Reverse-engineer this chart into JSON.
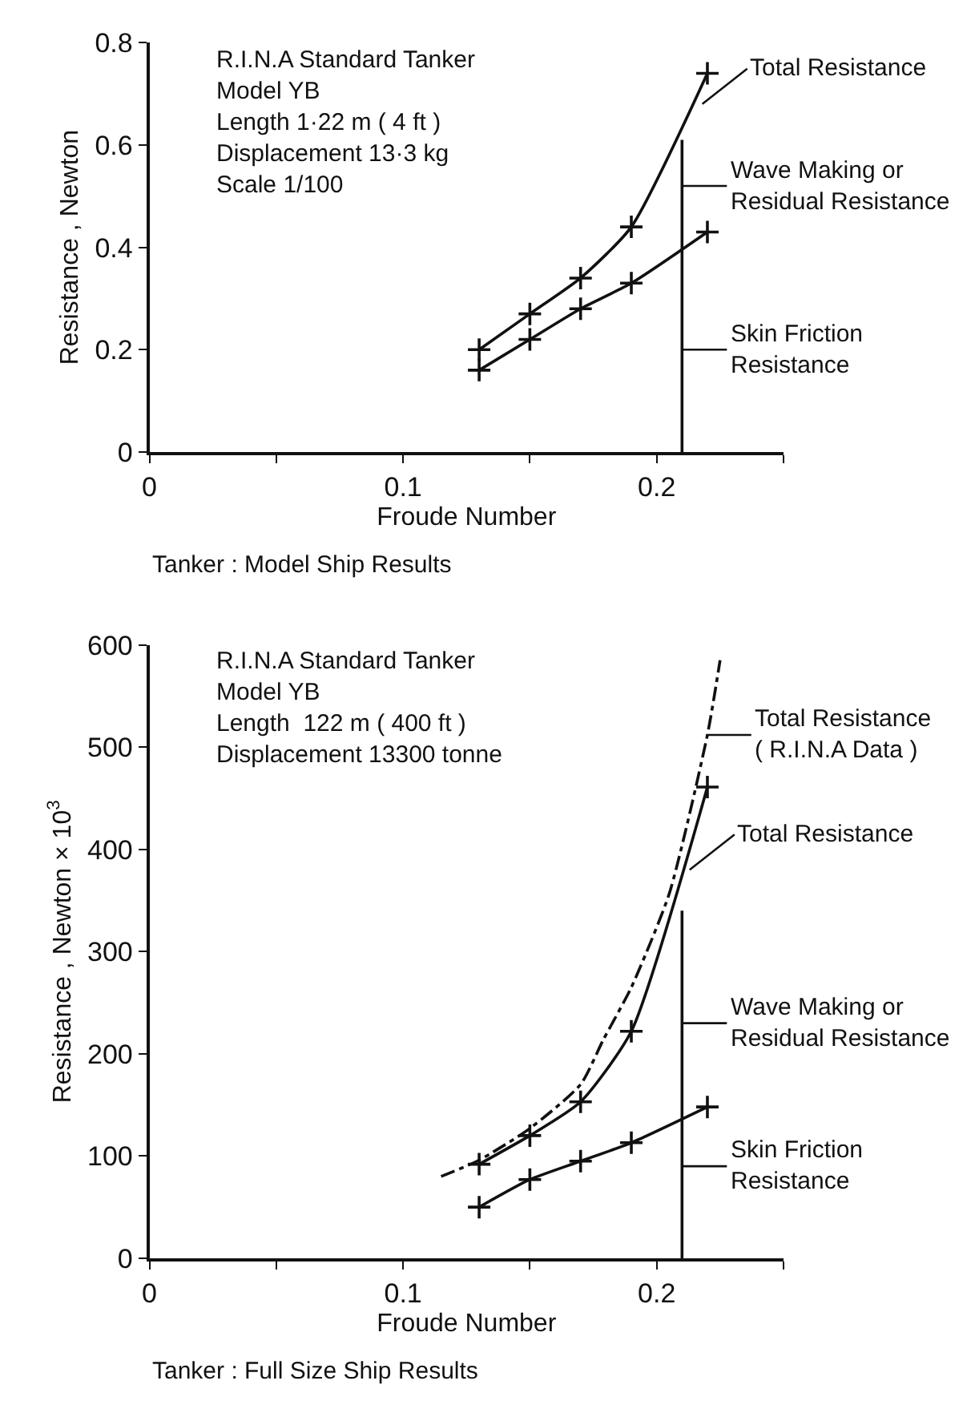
{
  "chart_data": [
    {
      "type": "line",
      "xlabel": "Froude Number",
      "ylabel": "Resistance , Newton",
      "xlim": [
        0,
        0.25
      ],
      "ylim": [
        0,
        0.8
      ],
      "xticks": [
        0,
        {
          "value": 0.05,
          "label": null
        },
        0.1,
        {
          "value": 0.15,
          "label": null
        },
        0.2,
        {
          "value": 0.25,
          "label": null
        }
      ],
      "yticks": [
        0,
        0.2,
        0.4,
        0.6,
        0.8
      ],
      "marker": "cross",
      "line_style": "solid",
      "series": [
        {
          "color": "#111111",
          "x": [
            0.13,
            0.15,
            0.17,
            0.19,
            0.22
          ],
          "values": [
            0.2,
            0.27,
            0.34,
            0.44,
            0.74
          ]
        },
        {
          "color": "#111111",
          "x": [
            0.13,
            0.15,
            0.17,
            0.19,
            0.22
          ],
          "values": [
            0.16,
            0.22,
            0.28,
            0.33,
            0.43
          ]
        },
        {
          "color": "#111111",
          "marker": "none",
          "x": [
            0.21,
            0.21
          ],
          "values": [
            0,
            0.61
          ]
        }
      ],
      "annotations": [
        "R.I.N.A Standard Tanker\nModel YB\nLength 1·22 m ( 4 ft )\nDisplacement 13·3 kg\nScale 1/100",
        "Tanker : Model Ship Results",
        {
          "text": "Total Resistance",
          "x": 0.218,
          "y": 0.68
        },
        {
          "text": "Wave Making or\nResidual Resistance",
          "x": 0.21,
          "y": 0.52
        },
        {
          "text": "Skin Friction\nResistance",
          "x": 0.21,
          "y": 0.2
        }
      ]
    },
    {
      "type": "line",
      "xlabel": "Froude Number",
      "ylabel": "Resistance , Newton × 10$^{3}$",
      "xlim": [
        0,
        0.25
      ],
      "ylim": [
        0,
        600
      ],
      "xticks": [
        0,
        {
          "value": 0.05,
          "label": null
        },
        0.1,
        {
          "value": 0.15,
          "label": null
        },
        0.2,
        {
          "value": 0.25,
          "label": null
        }
      ],
      "yticks": [
        0,
        100,
        200,
        300,
        400,
        500,
        600
      ],
      "marker": "cross",
      "line_style": "solid",
      "series": [
        {
          "color": "#111111",
          "marker": "none",
          "line_style": "dashed",
          "x": [
            0.115,
            0.13,
            0.15,
            0.17,
            0.179,
            0.19,
            0.205,
            0.22,
            0.225
          ],
          "values": [
            80,
            96,
            127,
            170,
            214,
            265,
            357,
            512,
            585
          ]
        },
        {
          "color": "#111111",
          "x": [
            0.13,
            0.15,
            0.17,
            0.19,
            0.22
          ],
          "values": [
            92,
            120,
            153,
            222,
            461
          ]
        },
        {
          "color": "#111111",
          "x": [
            0.13,
            0.15,
            0.17,
            0.19,
            0.22
          ],
          "values": [
            50,
            77,
            95,
            113,
            148
          ]
        },
        {
          "color": "#111111",
          "marker": "none",
          "x": [
            0.21,
            0.21
          ],
          "values": [
            0,
            340
          ]
        }
      ],
      "annotations": [
        "R.I.N.A Standard Tanker\nModel YB\nLength  122 m ( 400 ft )\nDisplacement 13300 tonne",
        "Tanker : Full Size Ship Results",
        {
          "text": "Total Resistance\n( R.I.N.A Data )",
          "x": 0.2196,
          "y": 512
        },
        {
          "text": "Total Resistance",
          "x": 0.213,
          "y": 380
        },
        {
          "text": "Wave Making or\nResidual Resistance",
          "x": 0.21,
          "y": 230
        },
        {
          "text": "Skin Friction\nResistance",
          "x": 0.21,
          "y": 90
        }
      ]
    }
  ]
}
